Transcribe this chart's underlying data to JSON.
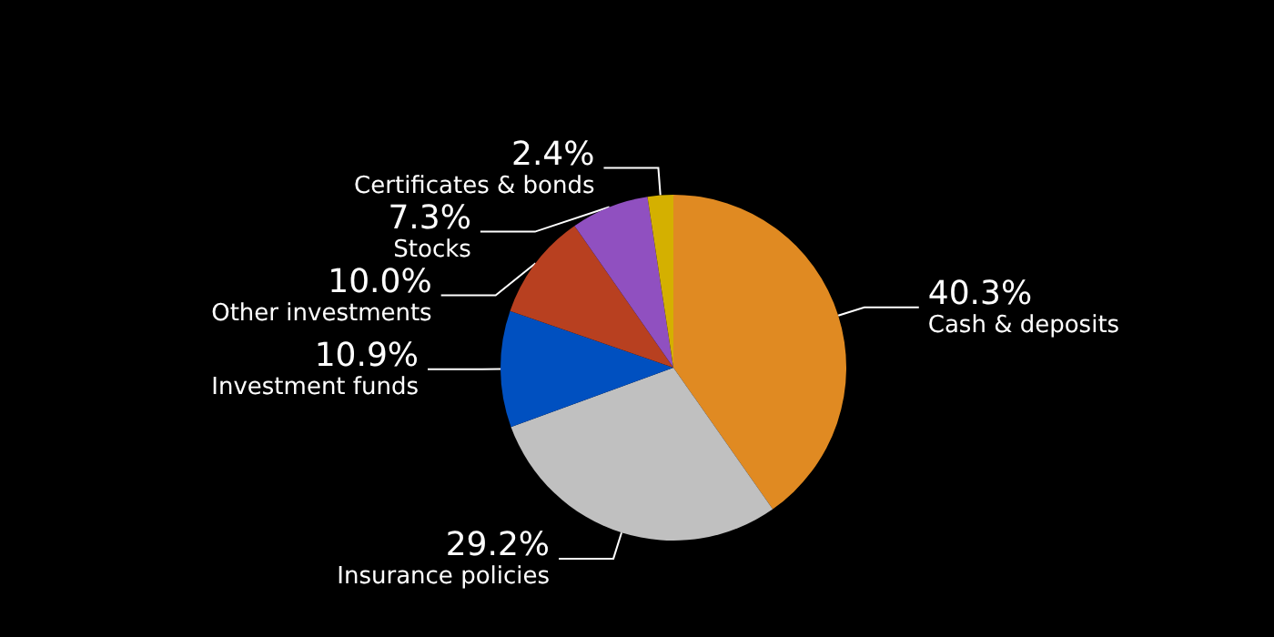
{
  "chart_data": {
    "type": "pie",
    "categories": [
      "Cash & deposits",
      "Insurance policies",
      "Investment funds",
      "Other investments",
      "Stocks",
      "Certificates & bonds"
    ],
    "values": [
      40.3,
      29.2,
      10.9,
      10.0,
      7.3,
      2.4
    ],
    "colors": [
      "#e08a22",
      "#c0c0c0",
      "#0050c0",
      "#b84020",
      "#9050c0",
      "#d4b000"
    ],
    "value_labels": [
      "40.3%",
      "29.2%",
      "10.9%",
      "10.0%",
      "7.3%",
      "2.4%"
    ]
  }
}
